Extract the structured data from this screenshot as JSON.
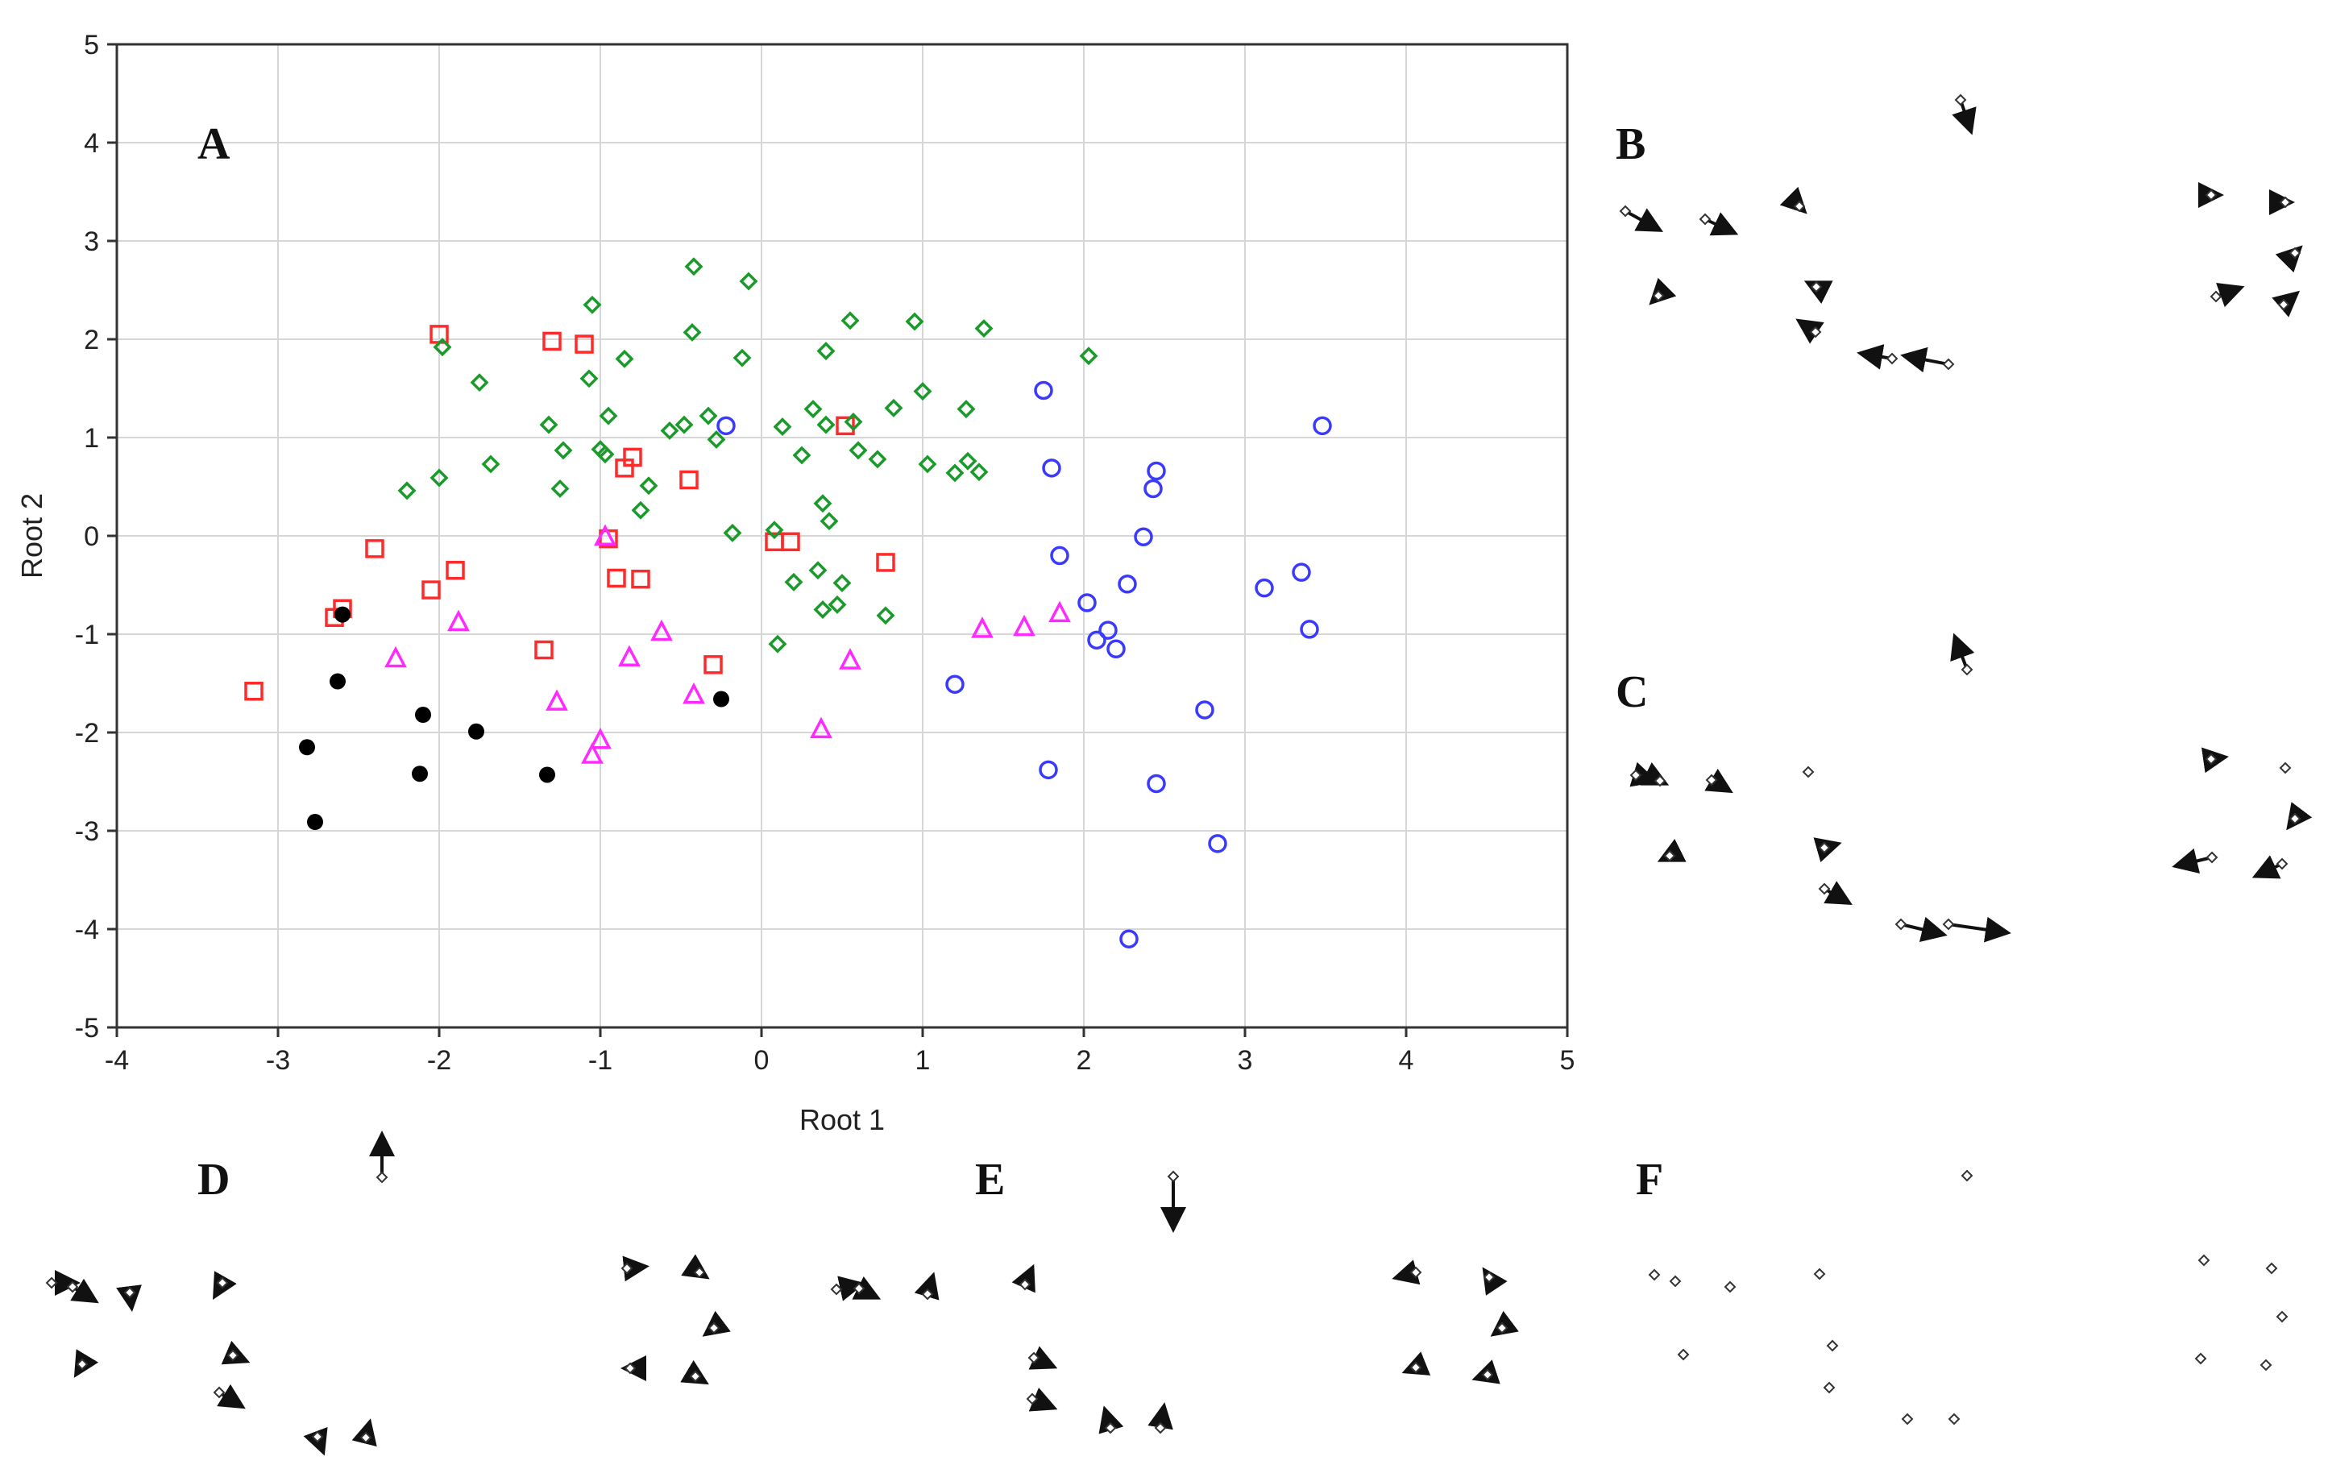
{
  "chart_data": {
    "type": "scatter",
    "panel_label": "A",
    "xlabel": "Root 1",
    "ylabel": "Root 2",
    "xlim": [
      -4,
      5
    ],
    "ylim": [
      -5,
      5
    ],
    "xticks": [
      "-4",
      "-3",
      "-2",
      "-1",
      "0",
      "1",
      "2",
      "3",
      "4",
      "5"
    ],
    "yticks": [
      "-5",
      "-4",
      "-3",
      "-2",
      "-1",
      "0",
      "1",
      "2",
      "3",
      "4",
      "5"
    ],
    "grid": true,
    "legend": "none",
    "series": [
      {
        "marker": "square-open",
        "color": "#ff2a2a",
        "points": [
          [
            -3.15,
            -1.58
          ],
          [
            -2.65,
            -0.83
          ],
          [
            -2.6,
            -0.74
          ],
          [
            -2.4,
            -0.13
          ],
          [
            -2.05,
            -0.55
          ],
          [
            -2.0,
            2.05
          ],
          [
            -1.9,
            -0.35
          ],
          [
            -1.35,
            -1.16
          ],
          [
            -1.3,
            1.98
          ],
          [
            -1.1,
            1.95
          ],
          [
            -0.95,
            -0.03
          ],
          [
            -0.9,
            -0.43
          ],
          [
            -0.85,
            0.69
          ],
          [
            -0.8,
            0.8
          ],
          [
            -0.75,
            -0.44
          ],
          [
            -0.45,
            0.57
          ],
          [
            -0.3,
            -1.31
          ],
          [
            0.08,
            -0.06
          ],
          [
            0.18,
            -0.06
          ],
          [
            0.52,
            1.12
          ],
          [
            0.77,
            -0.27
          ]
        ]
      },
      {
        "marker": "diamond-open",
        "color": "#1a9a2a",
        "points": [
          [
            -2.2,
            0.46
          ],
          [
            -2.0,
            0.59
          ],
          [
            -1.98,
            1.92
          ],
          [
            -1.75,
            1.56
          ],
          [
            -1.68,
            0.73
          ],
          [
            -1.32,
            1.13
          ],
          [
            -1.25,
            0.48
          ],
          [
            -1.23,
            0.87
          ],
          [
            -1.05,
            2.35
          ],
          [
            -1.07,
            1.6
          ],
          [
            -1.0,
            0.88
          ],
          [
            -0.97,
            0.83
          ],
          [
            -0.95,
            1.22
          ],
          [
            -0.85,
            1.8
          ],
          [
            -0.75,
            0.26
          ],
          [
            -0.7,
            0.51
          ],
          [
            -0.57,
            1.07
          ],
          [
            -0.48,
            1.13
          ],
          [
            -0.42,
            2.74
          ],
          [
            -0.43,
            2.07
          ],
          [
            -0.33,
            1.22
          ],
          [
            -0.28,
            0.98
          ],
          [
            -0.18,
            0.03
          ],
          [
            -0.12,
            1.81
          ],
          [
            -0.08,
            2.59
          ],
          [
            0.08,
            0.06
          ],
          [
            0.1,
            -1.1
          ],
          [
            0.13,
            1.11
          ],
          [
            0.2,
            -0.47
          ],
          [
            0.25,
            0.82
          ],
          [
            0.32,
            1.29
          ],
          [
            0.35,
            -0.35
          ],
          [
            0.38,
            -0.75
          ],
          [
            0.38,
            0.33
          ],
          [
            0.4,
            1.88
          ],
          [
            0.4,
            1.13
          ],
          [
            0.42,
            0.15
          ],
          [
            0.47,
            -0.7
          ],
          [
            0.5,
            -0.48
          ],
          [
            0.55,
            2.19
          ],
          [
            0.57,
            1.16
          ],
          [
            0.6,
            0.87
          ],
          [
            0.72,
            0.78
          ],
          [
            0.77,
            -0.81
          ],
          [
            0.82,
            1.3
          ],
          [
            0.95,
            2.18
          ],
          [
            1.0,
            1.47
          ],
          [
            1.03,
            0.73
          ],
          [
            1.2,
            0.64
          ],
          [
            1.27,
            1.29
          ],
          [
            1.28,
            0.76
          ],
          [
            1.35,
            0.65
          ],
          [
            1.38,
            2.11
          ],
          [
            2.03,
            1.83
          ]
        ]
      },
      {
        "marker": "circle-open",
        "color": "#3a3aff",
        "points": [
          [
            -0.22,
            1.12
          ],
          [
            1.2,
            -1.51
          ],
          [
            1.75,
            1.48
          ],
          [
            1.78,
            -2.38
          ],
          [
            1.8,
            0.69
          ],
          [
            1.85,
            -0.2
          ],
          [
            2.02,
            -0.68
          ],
          [
            2.08,
            -1.06
          ],
          [
            2.15,
            -0.96
          ],
          [
            2.2,
            -1.15
          ],
          [
            2.27,
            -0.49
          ],
          [
            2.28,
            -4.1
          ],
          [
            2.37,
            -0.01
          ],
          [
            2.43,
            0.48
          ],
          [
            2.45,
            0.66
          ],
          [
            2.45,
            -2.52
          ],
          [
            2.75,
            -1.77
          ],
          [
            2.83,
            -3.13
          ],
          [
            3.12,
            -0.53
          ],
          [
            3.35,
            -0.37
          ],
          [
            3.4,
            -0.95
          ],
          [
            3.48,
            1.12
          ]
        ]
      },
      {
        "marker": "triangle-open",
        "color": "#ff2aff",
        "points": [
          [
            -2.27,
            -1.25
          ],
          [
            -1.88,
            -0.88
          ],
          [
            -1.27,
            -1.69
          ],
          [
            -1.05,
            -2.23
          ],
          [
            -1.0,
            -2.08
          ],
          [
            -0.97,
            -0.01
          ],
          [
            -0.82,
            -1.24
          ],
          [
            -0.62,
            -0.98
          ],
          [
            -0.42,
            -1.62
          ],
          [
            0.37,
            -1.97
          ],
          [
            0.55,
            -1.27
          ],
          [
            1.37,
            -0.95
          ],
          [
            1.63,
            -0.93
          ],
          [
            1.85,
            -0.79
          ]
        ]
      },
      {
        "marker": "circle-filled",
        "color": "#000000",
        "points": [
          [
            -2.82,
            -2.15
          ],
          [
            -2.77,
            -2.91
          ],
          [
            -2.63,
            -1.48
          ],
          [
            -2.6,
            -0.8
          ],
          [
            -2.12,
            -2.42
          ],
          [
            -2.1,
            -1.82
          ],
          [
            -1.77,
            -1.99
          ],
          [
            -1.33,
            -2.43
          ],
          [
            -0.25,
            -1.66
          ]
        ]
      }
    ]
  },
  "panels": {
    "B": {
      "label": "B"
    },
    "C": {
      "label": "C"
    },
    "D": {
      "label": "D"
    },
    "E": {
      "label": "E"
    },
    "F": {
      "label": "F"
    }
  }
}
